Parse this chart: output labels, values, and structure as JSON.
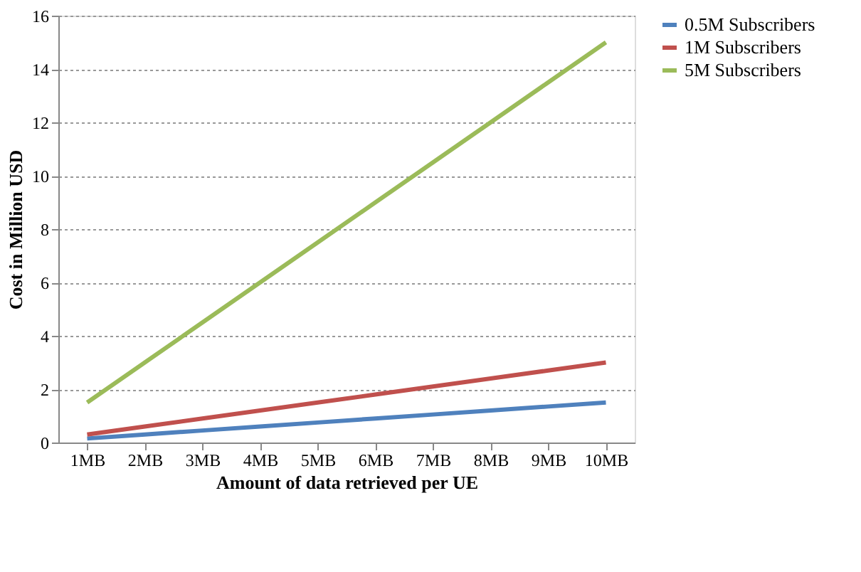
{
  "chart_data": {
    "type": "line",
    "xlabel": "Amount of data retrieved per UE",
    "ylabel": "Cost in Million USD",
    "categories": [
      "1MB",
      "2MB",
      "3MB",
      "4MB",
      "5MB",
      "6MB",
      "7MB",
      "8MB",
      "9MB",
      "10MB"
    ],
    "series": [
      {
        "name": "0.5M Subscribers",
        "color": "#4f81bd",
        "values": [
          0.15,
          0.3,
          0.45,
          0.6,
          0.75,
          0.9,
          1.05,
          1.2,
          1.35,
          1.5
        ]
      },
      {
        "name": "1M Subscribers",
        "color": "#c0504d",
        "values": [
          0.3,
          0.6,
          0.9,
          1.2,
          1.5,
          1.8,
          2.1,
          2.4,
          2.7,
          3.0
        ]
      },
      {
        "name": "5M Subscribers",
        "color": "#9bbb59",
        "values": [
          1.5,
          3.0,
          4.5,
          6.0,
          7.5,
          9.0,
          10.5,
          12.0,
          13.5,
          15.0
        ]
      }
    ],
    "ylim": [
      0,
      16
    ],
    "yticks": [
      0,
      2,
      4,
      6,
      8,
      10,
      12,
      14,
      16
    ],
    "grid": "y",
    "legend": "right",
    "marker": "none",
    "line_style": "solid"
  }
}
